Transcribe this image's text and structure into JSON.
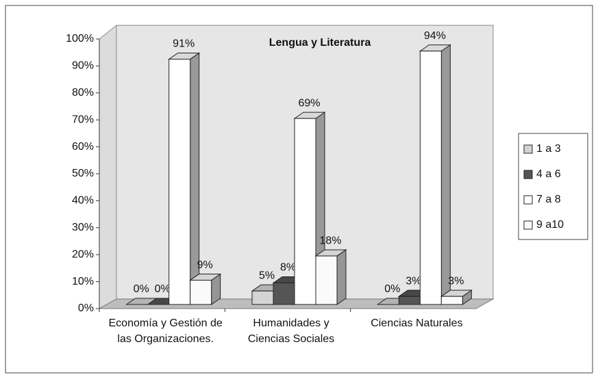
{
  "chart_data": {
    "type": "bar3d",
    "title": "Lengua y Literatura",
    "categories": [
      "Economía y Gestión de las Organizaciones.",
      "Humanidades y Ciencias Sociales",
      "Ciencias Naturales"
    ],
    "series": [
      {
        "name": "1 a 3",
        "color": "#d4d4d4",
        "values": [
          0,
          5,
          0
        ],
        "value_labels": [
          "0%",
          "5%",
          "0%"
        ]
      },
      {
        "name": "4 a 6",
        "color": "#555555",
        "values": [
          0,
          8,
          3
        ],
        "value_labels": [
          "0%",
          "8%",
          "3%"
        ]
      },
      {
        "name": "7 a 8",
        "color": "#ffffff",
        "values": [
          91,
          69,
          94
        ],
        "value_labels": [
          "91%",
          "69%",
          "94%"
        ]
      },
      {
        "name": "9 a10",
        "color": "#fafafa",
        "values": [
          9,
          18,
          3
        ],
        "value_labels": [
          "9%",
          "18%",
          "3%"
        ]
      }
    ],
    "ylim": [
      0,
      100
    ],
    "yticks": [
      {
        "value": 0,
        "label": "0%"
      },
      {
        "value": 10,
        "label": "10%"
      },
      {
        "value": 20,
        "label": "20%"
      },
      {
        "value": 30,
        "label": "30%"
      },
      {
        "value": 40,
        "label": "40%"
      },
      {
        "value": 50,
        "label": "50%"
      },
      {
        "value": 60,
        "label": "60%"
      },
      {
        "value": 70,
        "label": "70%"
      },
      {
        "value": 80,
        "label": "80%"
      },
      {
        "value": 90,
        "label": "90%"
      },
      {
        "value": 100,
        "label": "100%"
      }
    ],
    "grid": false,
    "legend": "right"
  }
}
